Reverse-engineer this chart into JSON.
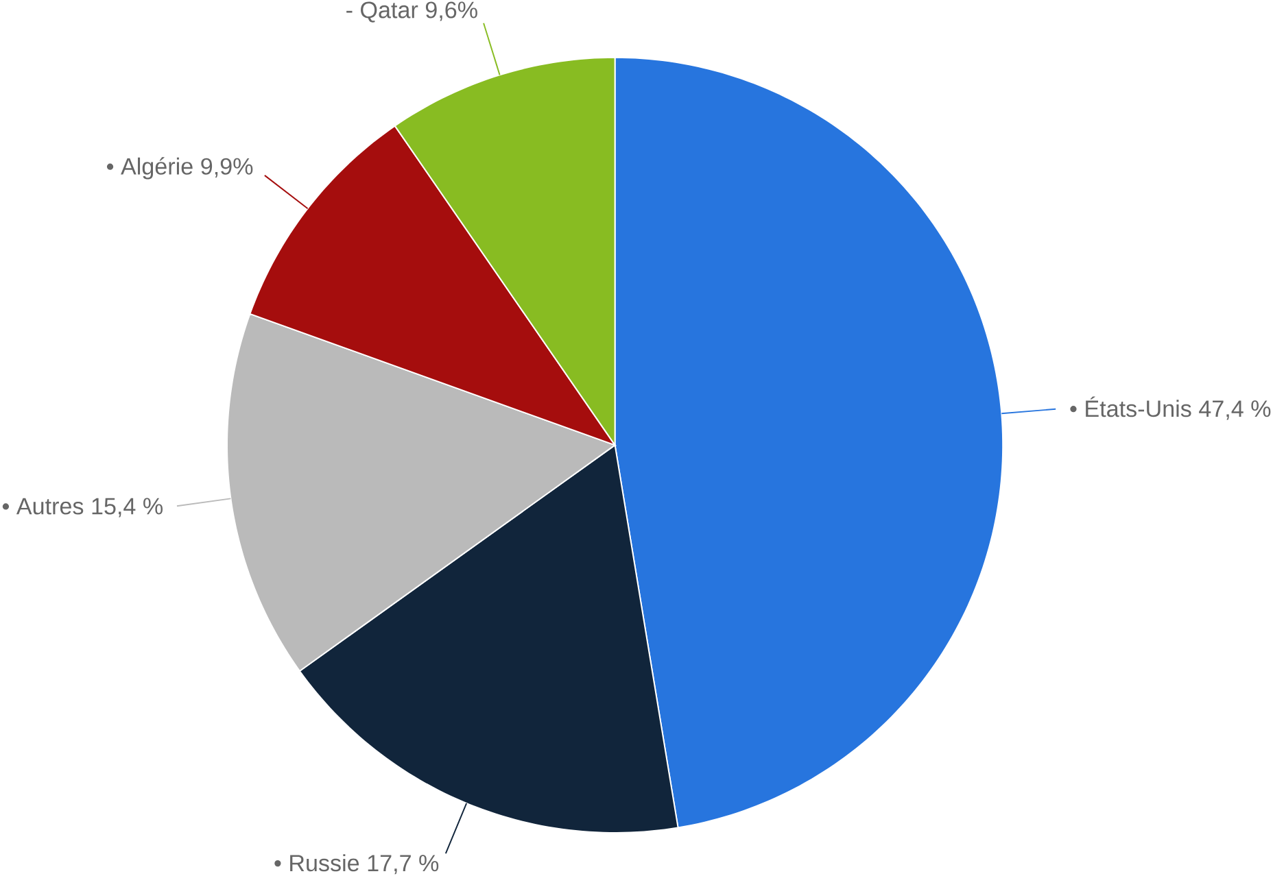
{
  "chart_data": {
    "type": "pie",
    "categories": [
      "• États-Unis",
      "• Russie",
      "• Autres",
      "• Algérie",
      "- Qatar"
    ],
    "values": [
      47.4,
      17.7,
      15.4,
      9.9,
      9.6
    ],
    "value_labels": [
      "47,4 %",
      "17,7 %",
      "15,4 %",
      "9,9%",
      "9,6%"
    ],
    "colors": [
      "#2775de",
      "#11253b",
      "#bababa",
      "#a50d0d",
      "#88bc22"
    ]
  }
}
